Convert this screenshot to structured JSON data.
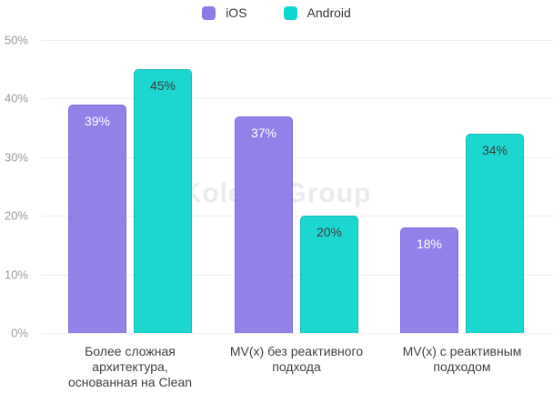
{
  "legend": {
    "items": [
      {
        "label": "iOS",
        "color": "#8b7ae8"
      },
      {
        "label": "Android",
        "color": "#0ed5ce"
      }
    ]
  },
  "watermark": "Kolesa Group",
  "chart_data": {
    "type": "bar",
    "title": "",
    "categories": [
      "Более сложная архитектура, основанная на Clean",
      "MV(x) без реактивного подхода",
      "MV(x) с реактивным подходом"
    ],
    "xtick_labels": [
      "Более сложная\nархитектура,\nоснованная на Clean",
      "MV(x) без реактивного\nподхода",
      "MV(x) с реактивным\nподходом"
    ],
    "series": [
      {
        "name": "iOS",
        "color": "#8b7ae8",
        "border_color": "#7a67da",
        "label_color": "#ffffff",
        "values": [
          39,
          37,
          18
        ]
      },
      {
        "name": "Android",
        "color": "#0ed5ce",
        "border_color": "#0ab6b1",
        "label_color": "#323232",
        "values": [
          45,
          20,
          34
        ]
      }
    ],
    "ylim": [
      0,
      50
    ],
    "ytick_step": 10,
    "ytick_labels": [
      "0%",
      "10%",
      "20%",
      "30%",
      "40%",
      "50%"
    ],
    "value_suffix": "%",
    "grid": true,
    "legend_position": "top"
  }
}
